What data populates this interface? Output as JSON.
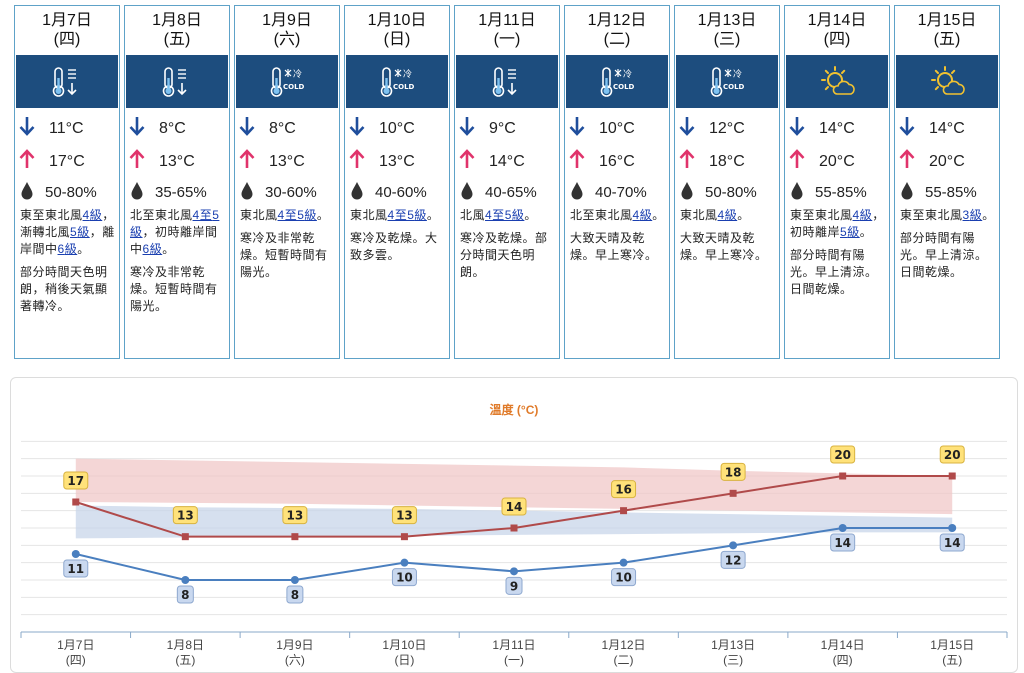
{
  "forecast": [
    {
      "date": "1月7日",
      "weekday": "(四)",
      "icon": "cold-thermometer-down-icon",
      "low": "11°C",
      "high": "17°C",
      "humidity": "50-80%",
      "wind_parts": [
        {
          "t": "東至東北風"
        },
        {
          "t": "4",
          "l": 1
        },
        {
          "t": "級",
          "l": 1
        },
        {
          "t": "，漸轉北風"
        },
        {
          "t": "5",
          "l": 1
        },
        {
          "t": "級",
          "l": 1
        },
        {
          "t": "，離岸間中"
        },
        {
          "t": "6",
          "l": 1
        },
        {
          "t": "級",
          "l": 1
        },
        {
          "t": "。"
        }
      ],
      "weather": "部分時間天色明朗，稍後天氣顯著轉冷。"
    },
    {
      "date": "1月8日",
      "weekday": "(五)",
      "icon": "cold-thermometer-down-icon",
      "low": "8°C",
      "high": "13°C",
      "humidity": "35-65%",
      "wind_parts": [
        {
          "t": "北至東北風"
        },
        {
          "t": "4至",
          "l": 1
        },
        {
          "t": "5級",
          "l": 1
        },
        {
          "t": "，初時離岸間中"
        },
        {
          "t": "6級",
          "l": 1
        },
        {
          "t": "。"
        }
      ],
      "weather": "寒冷及非常乾燥。短暫時間有陽光。"
    },
    {
      "date": "1月9日",
      "weekday": "(六)",
      "icon": "cold-snowflake-icon",
      "low": "8°C",
      "high": "13°C",
      "humidity": "30-60%",
      "wind_parts": [
        {
          "t": "東北風"
        },
        {
          "t": "4至5",
          "l": 1
        },
        {
          "t": "級",
          "l": 1
        },
        {
          "t": "。"
        }
      ],
      "weather": "寒冷及非常乾燥。短暫時間有陽光。"
    },
    {
      "date": "1月10日",
      "weekday": "(日)",
      "icon": "cold-snowflake-icon",
      "low": "10°C",
      "high": "13°C",
      "humidity": "40-60%",
      "wind_parts": [
        {
          "t": "東北風"
        },
        {
          "t": "4至5",
          "l": 1
        },
        {
          "t": "級",
          "l": 1
        },
        {
          "t": "。"
        }
      ],
      "weather": "寒冷及乾燥。大致多雲。"
    },
    {
      "date": "1月11日",
      "weekday": "(一)",
      "icon": "cold-thermometer-down-icon",
      "low": "9°C",
      "high": "14°C",
      "humidity": "40-65%",
      "wind_parts": [
        {
          "t": "北風"
        },
        {
          "t": "4至5級",
          "l": 1
        },
        {
          "t": "。"
        }
      ],
      "weather": "寒冷及乾燥。部分時間天色明朗。"
    },
    {
      "date": "1月12日",
      "weekday": "(二)",
      "icon": "cold-snowflake-icon",
      "low": "10°C",
      "high": "16°C",
      "humidity": "40-70%",
      "wind_parts": [
        {
          "t": "北至東北風"
        },
        {
          "t": "4",
          "l": 1
        },
        {
          "t": "級",
          "l": 1
        },
        {
          "t": "。"
        }
      ],
      "weather": "大致天晴及乾燥。早上寒冷。"
    },
    {
      "date": "1月13日",
      "weekday": "(三)",
      "icon": "cold-snowflake-icon",
      "low": "12°C",
      "high": "18°C",
      "humidity": "50-80%",
      "wind_parts": [
        {
          "t": "東北風"
        },
        {
          "t": "4級",
          "l": 1
        },
        {
          "t": "。"
        }
      ],
      "weather": "大致天晴及乾燥。早上寒冷。"
    },
    {
      "date": "1月14日",
      "weekday": "(四)",
      "icon": "sun-cloud-icon",
      "low": "14°C",
      "high": "20°C",
      "humidity": "55-85%",
      "wind_parts": [
        {
          "t": "東至東北風"
        },
        {
          "t": "4",
          "l": 1
        },
        {
          "t": "級",
          "l": 1
        },
        {
          "t": "，初時離岸"
        },
        {
          "t": "5",
          "l": 1
        },
        {
          "t": "級",
          "l": 1
        },
        {
          "t": "。"
        }
      ],
      "weather": "部分時間有陽光。早上清涼。日間乾燥。"
    },
    {
      "date": "1月15日",
      "weekday": "(五)",
      "icon": "sun-cloud-icon",
      "low": "14°C",
      "high": "20°C",
      "humidity": "55-85%",
      "wind_parts": [
        {
          "t": "東至東北風"
        },
        {
          "t": "3",
          "l": 1
        },
        {
          "t": "級",
          "l": 1
        },
        {
          "t": "。"
        }
      ],
      "weather": "部分時間有陽光。早上清涼。日間乾燥。"
    }
  ],
  "colors": {
    "accent": "#1d4d7e",
    "border": "#5ea2c8",
    "arrow_down": "#1f4e9c",
    "arrow_up": "#e0336b",
    "high_line": "#b04a4a",
    "low_line": "#4a7fbf",
    "title": "#e07b2a"
  },
  "chart_data": {
    "type": "line",
    "title": "溫度 (°C)",
    "categories": [
      "1月7日",
      "1月8日",
      "1月9日",
      "1月10日",
      "1月11日",
      "1月12日",
      "1月13日",
      "1月14日",
      "1月15日"
    ],
    "category_sub": [
      "(四)",
      "(五)",
      "(六)",
      "(日)",
      "(一)",
      "(二)",
      "(三)",
      "(四)",
      "(五)"
    ],
    "series": [
      {
        "values": [
          17,
          13,
          13,
          13,
          14,
          16,
          18,
          20,
          20
        ],
        "color": "#b04a4a",
        "label_bg": "#ffe27a"
      },
      {
        "values": [
          11,
          8,
          8,
          10,
          9,
          10,
          12,
          14,
          14
        ],
        "color": "#4a7fbf",
        "label_bg": "#c9d8ef"
      }
    ],
    "bands": [
      {
        "upper": [
          22,
          21.8,
          21.6,
          21.4,
          21.2,
          21.0,
          20.6,
          20.3,
          20.0
        ],
        "lower": [
          17,
          16.9,
          16.8,
          16.6,
          16.4,
          16.2,
          16.0,
          15.8,
          15.6
        ],
        "color": "#f0c8c8"
      },
      {
        "upper": [
          16.6,
          16.4,
          16.3,
          16.2,
          16.0,
          15.8,
          15.6,
          15.4,
          15.2
        ],
        "lower": [
          12.8,
          12.9,
          13.0,
          13.1,
          13.2,
          13.3,
          13.4,
          13.5,
          13.5
        ],
        "color": "#c8d6ea"
      }
    ],
    "ylim": [
      2,
      26
    ],
    "grid": true
  }
}
